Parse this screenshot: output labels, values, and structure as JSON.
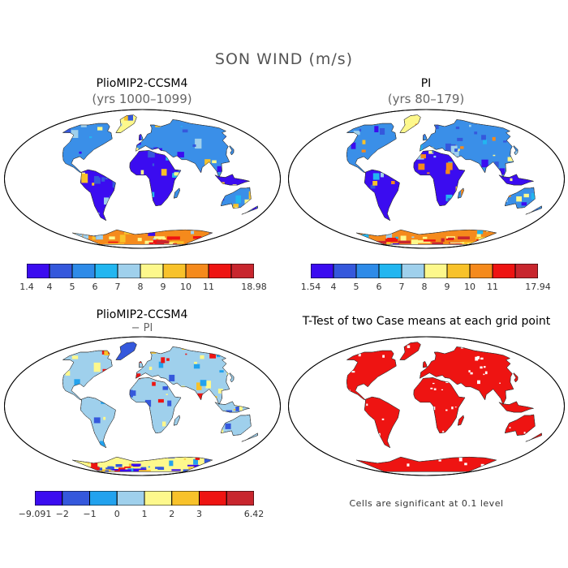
{
  "figure": {
    "title": "SON WIND (m/s)"
  },
  "panels": [
    {
      "id": "p1",
      "title": "PlioMIP2-CCSM4",
      "subtitle": "(yrs 1000–1099)",
      "colorbar": {
        "colors": [
          "#3b0cf0",
          "#3558dc",
          "#2e8be8",
          "#22b6f0",
          "#9fd0ec",
          "#fdf88c",
          "#f8c22a",
          "#f58a1c",
          "#ee1412",
          "#c8262e"
        ],
        "labels": [
          "1.4",
          "4",
          "5",
          "6",
          "7",
          "8",
          "9",
          "10",
          "11",
          "18.98"
        ]
      }
    },
    {
      "id": "p2",
      "title": "PI",
      "subtitle": "(yrs 80–179)",
      "colorbar": {
        "colors": [
          "#3b0cf0",
          "#3558dc",
          "#2e8be8",
          "#22b6f0",
          "#9fd0ec",
          "#fdf88c",
          "#f8c22a",
          "#f58a1c",
          "#ee1412",
          "#c8262e"
        ],
        "labels": [
          "1.54",
          "4",
          "5",
          "6",
          "7",
          "8",
          "9",
          "10",
          "11",
          "17.94"
        ]
      }
    },
    {
      "id": "p3",
      "title": "PlioMIP2-CCSM4",
      "subtitle": "− PI",
      "colorbar": {
        "colors": [
          "#3b0cf0",
          "#3558dc",
          "#22a2ee",
          "#9fd0ec",
          "#fdf88c",
          "#f8c22a",
          "#ee1412",
          "#c8262e"
        ],
        "labels": [
          "−9.091",
          "−2",
          "−1",
          "0",
          "1",
          "2",
          "3",
          "6.42"
        ]
      }
    },
    {
      "id": "p4",
      "title": "T-Test of two Case means at each grid point",
      "subtitle": "",
      "note": "Cells are significant at 0.1 level"
    }
  ]
}
